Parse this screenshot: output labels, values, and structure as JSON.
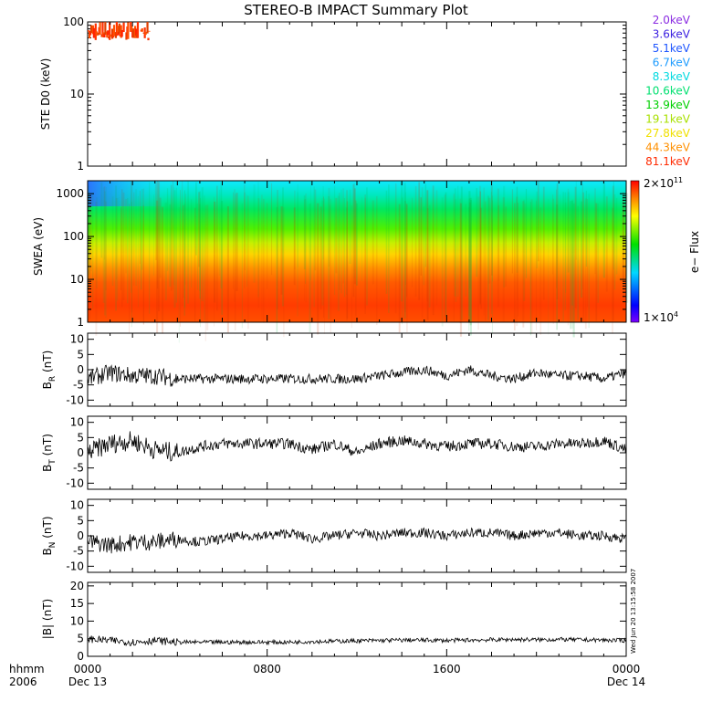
{
  "title": "STEREO-B IMPACT Summary Plot",
  "footer": {
    "hhmm": "hhmm",
    "year": "2006",
    "timestamp": "Wed Jun 20 13:15:58 2007"
  },
  "x_axis": {
    "ticks": [
      {
        "label": "0000",
        "sublabel": "Dec 13",
        "hour": 0
      },
      {
        "label": "0800",
        "sublabel": "",
        "hour": 8
      },
      {
        "label": "1600",
        "sublabel": "",
        "hour": 16
      },
      {
        "label": "0000",
        "sublabel": "Dec 14",
        "hour": 24
      }
    ]
  },
  "legend_energies": [
    {
      "label": "2.0keV",
      "color": "#8a2be2"
    },
    {
      "label": "3.6keV",
      "color": "#3a1ee0"
    },
    {
      "label": "5.1keV",
      "color": "#1e56ff"
    },
    {
      "label": "6.7keV",
      "color": "#1e9cff"
    },
    {
      "label": "8.3keV",
      "color": "#00d9e0"
    },
    {
      "label": "10.6keV",
      "color": "#00e070"
    },
    {
      "label": "13.9keV",
      "color": "#00d000"
    },
    {
      "label": "19.1keV",
      "color": "#a8e000"
    },
    {
      "label": "27.8keV",
      "color": "#f0e000"
    },
    {
      "label": "44.3keV",
      "color": "#ff9000"
    },
    {
      "label": "81.1keV",
      "color": "#ff2a00"
    }
  ],
  "colorbar": {
    "max_label_base": "2×10",
    "max_label_exp": "11",
    "min_label_base": "1×10",
    "min_label_exp": "4",
    "title": "e− Flux"
  },
  "chart_data": [
    {
      "type": "line",
      "name": "ste_d0",
      "ylabel": "STE D0 (keV)",
      "yscale": "log",
      "ylim": [
        1,
        100
      ],
      "yticks": [
        "1",
        "10",
        "100"
      ],
      "xlim_hours": [
        0,
        24
      ],
      "data_extent_hours": [
        0,
        2.7
      ],
      "approx_values": [
        90,
        80,
        70,
        95,
        60,
        85,
        75,
        65,
        90,
        70,
        60,
        80,
        75,
        95,
        65,
        70
      ]
    },
    {
      "type": "heatmap",
      "name": "swea",
      "ylabel": "SWEA (eV)",
      "yscale": "log",
      "ylim": [
        1,
        2000
      ],
      "yticks": [
        "1",
        "10",
        "100",
        "1000"
      ],
      "xlim_hours": [
        0,
        24
      ],
      "zscale": "log",
      "zlim": [
        10000,
        200000000000
      ]
    },
    {
      "type": "line",
      "name": "br",
      "ylabel_main": "B",
      "ylabel_sub": "R",
      "ylabel_unit": " (nT)",
      "ylim": [
        -12,
        12
      ],
      "yticks": [
        "-10",
        "-5",
        "0",
        "5",
        "10"
      ],
      "x_hours": [
        0,
        1,
        2,
        3,
        4,
        5,
        6,
        7,
        8,
        9,
        10,
        11,
        12,
        13,
        14,
        15,
        16,
        17,
        18,
        19,
        20,
        21,
        22,
        23,
        24
      ],
      "values": [
        -3,
        -1,
        -2,
        -2,
        -3,
        -3,
        -3,
        -3,
        -3,
        -3,
        -3,
        -3,
        -3,
        -2,
        -1,
        0,
        -2,
        0,
        -2,
        -3,
        -1,
        -2,
        -2,
        -3,
        -1
      ]
    },
    {
      "type": "line",
      "name": "bt",
      "ylabel_main": "B",
      "ylabel_sub": "T",
      "ylabel_unit": " (nT)",
      "ylim": [
        -12,
        12
      ],
      "yticks": [
        "-10",
        "-5",
        "0",
        "5",
        "10"
      ],
      "x_hours": [
        0,
        1,
        2,
        3,
        4,
        5,
        6,
        7,
        8,
        9,
        10,
        11,
        12,
        13,
        14,
        15,
        16,
        17,
        18,
        19,
        20,
        21,
        22,
        23,
        24
      ],
      "values": [
        0,
        3,
        4,
        1,
        0,
        2,
        3,
        3,
        3,
        3,
        1,
        3,
        0,
        3,
        4,
        3,
        2,
        3,
        3,
        2,
        2,
        3,
        3,
        4,
        1
      ]
    },
    {
      "type": "line",
      "name": "bn",
      "ylabel_main": "B",
      "ylabel_sub": "N",
      "ylabel_unit": " (nT)",
      "ylim": [
        -12,
        12
      ],
      "yticks": [
        "-10",
        "-5",
        "0",
        "5",
        "10"
      ],
      "x_hours": [
        0,
        1,
        2,
        3,
        4,
        5,
        6,
        7,
        8,
        9,
        10,
        11,
        12,
        13,
        14,
        15,
        16,
        17,
        18,
        19,
        20,
        21,
        22,
        23,
        24
      ],
      "values": [
        -2,
        -3,
        -2,
        -2,
        -1,
        -2,
        -1,
        0,
        0,
        1,
        -1,
        0,
        1,
        0,
        1,
        1,
        0,
        1,
        1,
        0,
        1,
        1,
        0,
        0,
        -1
      ]
    },
    {
      "type": "line",
      "name": "bmag",
      "ylabel_main": "|B| (nT)",
      "ylim": [
        0,
        21
      ],
      "yticks": [
        "0",
        "5",
        "10",
        "15",
        "20"
      ],
      "x_hours": [
        0,
        1,
        2,
        3,
        4,
        5,
        6,
        7,
        8,
        9,
        10,
        11,
        12,
        13,
        14,
        15,
        16,
        17,
        18,
        19,
        20,
        21,
        22,
        23,
        24
      ],
      "values": [
        5,
        4.5,
        4,
        4.5,
        4,
        4,
        4,
        4,
        4,
        4,
        4.2,
        4.3,
        4.4,
        4.5,
        4.6,
        4.6,
        4.5,
        4.6,
        4.7,
        4.8,
        4.7,
        4.8,
        4.7,
        4.6,
        4.5
      ]
    }
  ]
}
